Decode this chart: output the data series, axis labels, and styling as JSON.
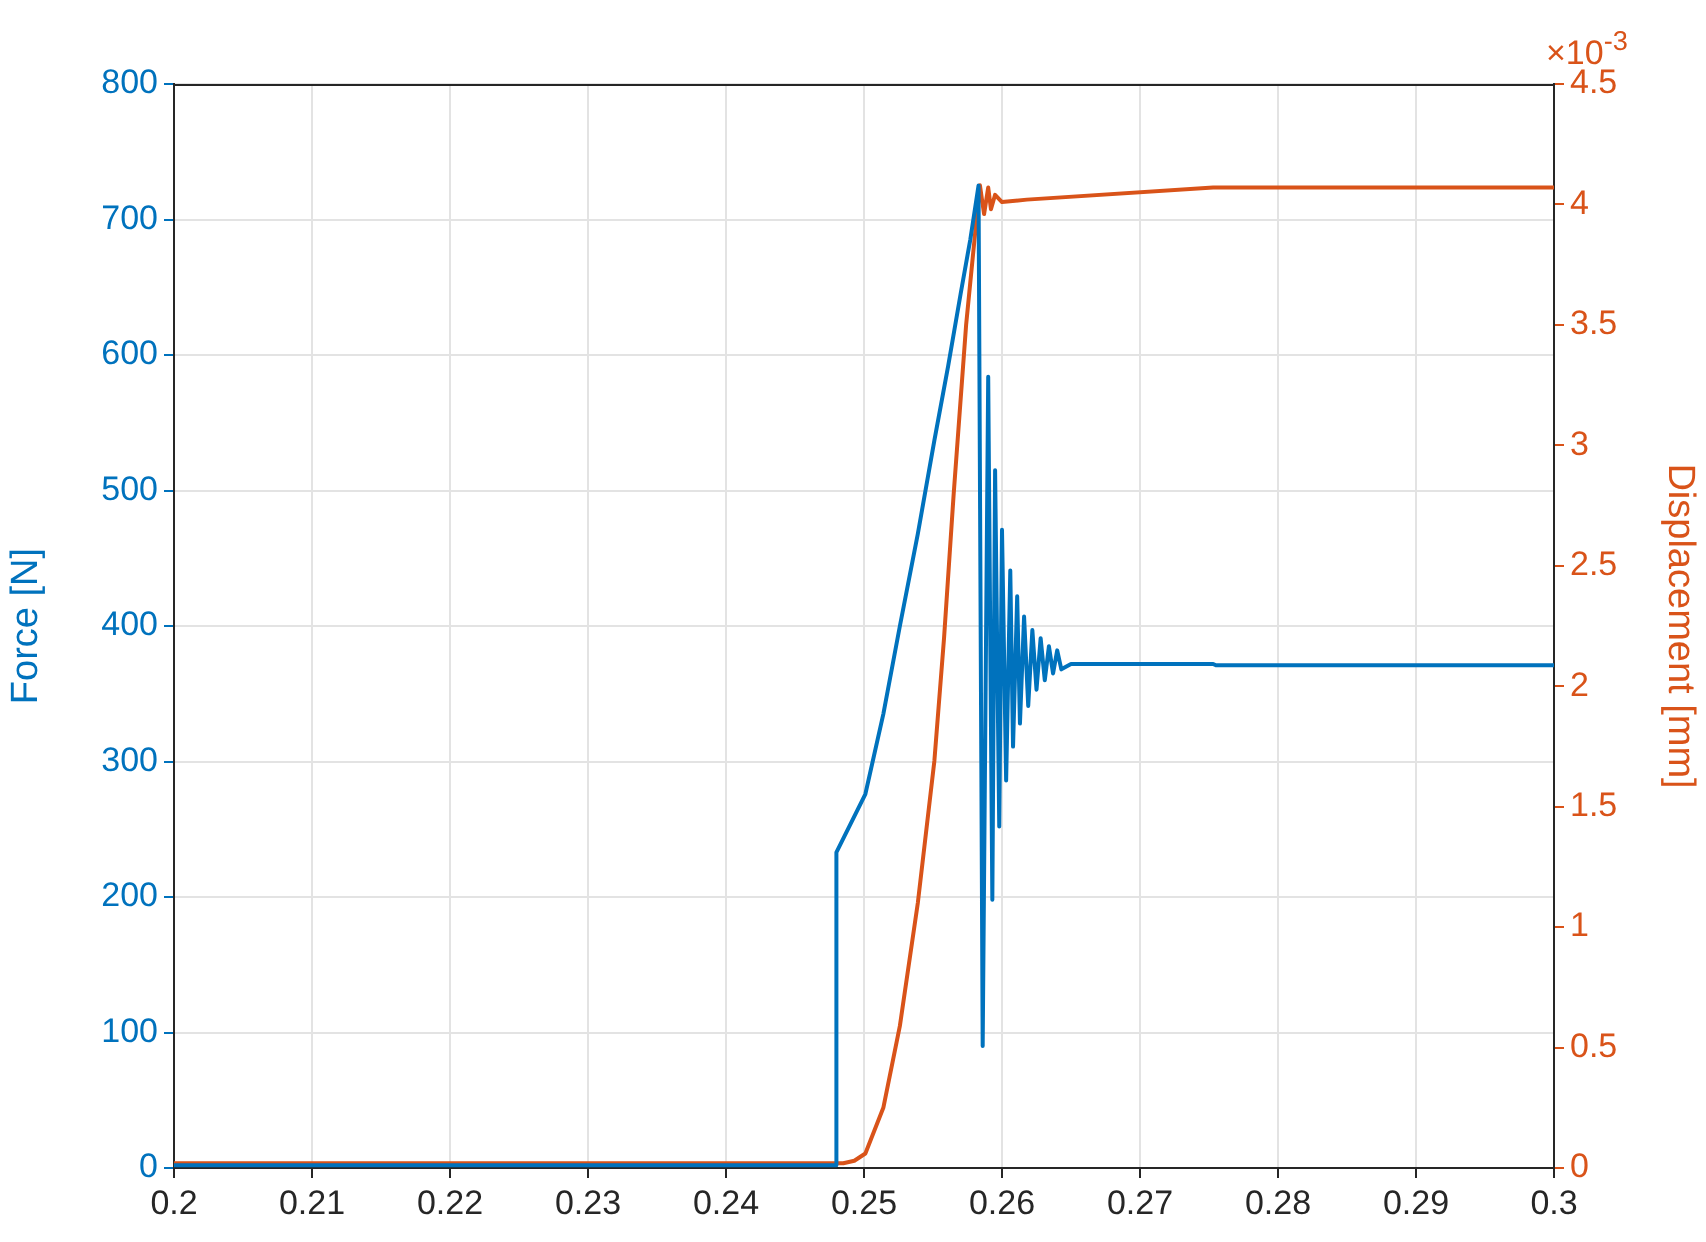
{
  "chart_data": {
    "type": "line",
    "ylabel": "Force [N]",
    "y2label": "Displacement [mm]",
    "annotations": [
      "×10$^{-3}$"
    ],
    "xlim": [
      0.2,
      0.3
    ],
    "xticks": [
      0.2,
      0.21,
      0.22,
      0.23,
      0.24,
      0.25,
      0.26,
      0.27,
      0.28,
      0.29,
      0.3
    ],
    "ylim": [
      0,
      800
    ],
    "yticks": [
      0,
      100,
      200,
      300,
      400,
      500,
      600,
      700,
      800
    ],
    "y2lim": [
      0,
      4.5
    ],
    "y2ticks": [
      0,
      0.5,
      1,
      1.5,
      2,
      2.5,
      3,
      3.5,
      4,
      4.5
    ],
    "grid": true,
    "legend": false,
    "marker": "none",
    "line_style": "solid",
    "series": [
      {
        "color": "#0072bd",
        "x": [
          0.2,
          0.248,
          0.248,
          0.2501,
          0.2514,
          0.2526,
          0.2539,
          0.2551,
          0.2561,
          0.257,
          0.2577,
          0.2583,
          0.2586,
          0.259,
          0.2593,
          0.2595,
          0.2598,
          0.26,
          0.2603,
          0.2606,
          0.2608,
          0.2611,
          0.2613,
          0.2616,
          0.2619,
          0.2622,
          0.2625,
          0.2628,
          0.2631,
          0.2634,
          0.2637,
          0.264,
          0.2643,
          0.265,
          0.2753,
          0.2755,
          0.3
        ],
        "values": [
          2,
          2,
          233,
          276,
          335,
          400,
          468,
          537,
          592,
          645,
          685,
          725,
          90,
          584,
          198,
          515,
          252,
          471,
          286,
          441,
          311,
          422,
          328,
          407,
          341,
          397,
          353,
          391,
          360,
          385,
          365,
          382,
          368,
          372,
          372,
          371,
          371
        ]
      },
      {
        "color": "#d95319",
        "axis": "y2",
        "x": [
          0.2,
          0.2485,
          0.2493,
          0.2501,
          0.2514,
          0.2526,
          0.2539,
          0.2551,
          0.2558,
          0.2565,
          0.2574,
          0.258,
          0.2584,
          0.2587,
          0.259,
          0.2592,
          0.2595,
          0.26,
          0.2618,
          0.2753,
          0.3
        ],
        "values": [
          0.02,
          0.02,
          0.03,
          0.06,
          0.25,
          0.59,
          1.1,
          1.69,
          2.2,
          2.8,
          3.5,
          3.85,
          4.08,
          3.96,
          4.07,
          3.98,
          4.04,
          4.01,
          4.02,
          4.07,
          4.07
        ]
      }
    ]
  }
}
